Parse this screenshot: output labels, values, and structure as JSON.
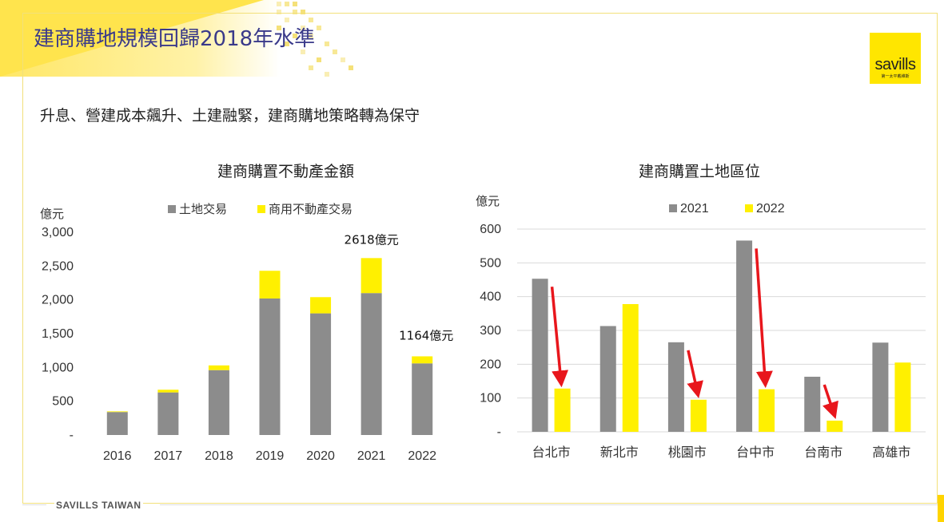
{
  "header": {
    "title": "建商購地規模回歸2018年水準",
    "subtitle": "升息、營建成本飆升、土建融緊，建商購地策略轉為保守"
  },
  "logo": {
    "word": "savills",
    "sub": "第一太平戴維斯"
  },
  "footer": {
    "text": "SAVILLS TAIWAN"
  },
  "colors": {
    "gray": "#8c8c8c",
    "yellow": "#fff000",
    "arrow": "#e8161c",
    "title": "#3a3a8a"
  },
  "chart_data": [
    {
      "type": "bar",
      "stacked": true,
      "title": "建商購置不動產金額",
      "ylabel": "億元",
      "categories": [
        "2016",
        "2017",
        "2018",
        "2019",
        "2020",
        "2021",
        "2022"
      ],
      "series": [
        {
          "name": "土地交易",
          "values": [
            340,
            630,
            960,
            2020,
            1800,
            2100,
            1060
          ]
        },
        {
          "name": "商用不動產交易",
          "values": [
            10,
            40,
            70,
            410,
            240,
            518,
            104
          ]
        }
      ],
      "ylim": [
        0,
        3000
      ],
      "yticks": [
        0,
        500,
        1000,
        1500,
        2000,
        2500,
        3000
      ],
      "ytick_labels": [
        "-",
        "500",
        "1,000",
        "1,500",
        "2,000",
        "2,500",
        "3,000"
      ],
      "annotations": [
        {
          "text": "2618億元",
          "category": "2021"
        },
        {
          "text": "1164億元",
          "category": "2022"
        }
      ],
      "legend": "top-center",
      "grid": false
    },
    {
      "type": "bar",
      "title": "建商購置土地區位",
      "ylabel": "億元",
      "categories": [
        "台北市",
        "新北市",
        "桃園市",
        "台中市",
        "台南市",
        "高雄市"
      ],
      "series": [
        {
          "name": "2021",
          "values": [
            453,
            313,
            265,
            566,
            163,
            264
          ]
        },
        {
          "name": "2022",
          "values": [
            128,
            378,
            95,
            126,
            33,
            205
          ]
        }
      ],
      "ylim": [
        0,
        600
      ],
      "yticks": [
        0,
        100,
        200,
        300,
        400,
        500,
        600
      ],
      "ytick_labels": [
        "-",
        "100",
        "200",
        "300",
        "400",
        "500",
        "600"
      ],
      "arrows_on": [
        "台北市",
        "桃園市",
        "台中市",
        "台南市"
      ],
      "legend": "top-center",
      "grid": true
    }
  ]
}
